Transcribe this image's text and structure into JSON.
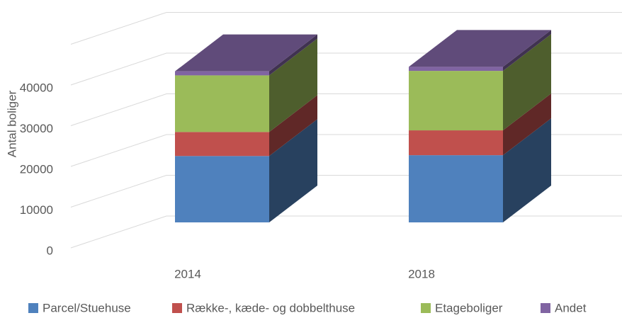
{
  "chart_data": {
    "type": "bar3d_stacked",
    "y_label": "Antal boliger",
    "categories": [
      "2014",
      "2018"
    ],
    "series": [
      {
        "name": "Parcel/Stuehuse",
        "color": "#4f81bd",
        "values": [
          16300,
          16500
        ]
      },
      {
        "name": "Række-, kæde- og dobbelthuse",
        "color": "#c0504d",
        "values": [
          5900,
          6100
        ]
      },
      {
        "name": "Etageboliger",
        "color": "#9bbb59",
        "values": [
          13900,
          14600
        ]
      },
      {
        "name": "Andet",
        "color": "#8064a2",
        "values": [
          1000,
          1000
        ]
      }
    ],
    "ylim": [
      0,
      50000
    ],
    "yticks": [
      0,
      10000,
      20000,
      30000,
      40000
    ],
    "grid": true,
    "legend": "bottom"
  }
}
